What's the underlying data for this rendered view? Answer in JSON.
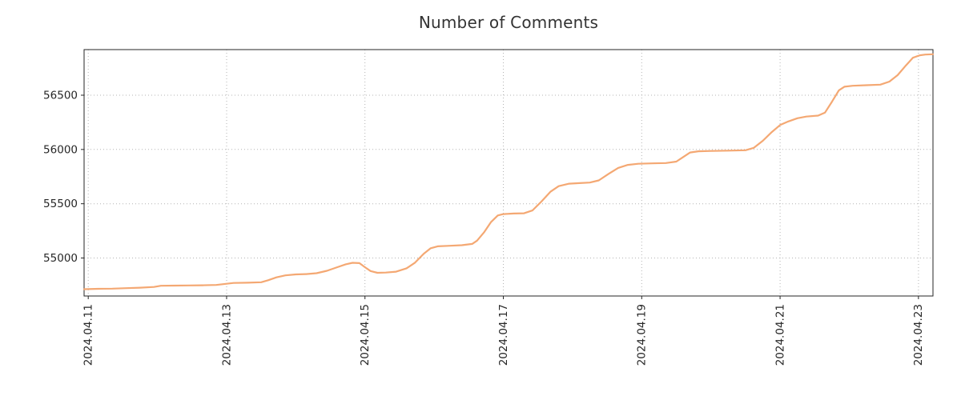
{
  "chart_data": {
    "type": "line",
    "title": "Number of Comments",
    "xlabel": "",
    "ylabel": "",
    "x_unit": "days since 2024.04.11",
    "grid": true,
    "legend": "none",
    "line_color": "#f4a873",
    "grid_color": "#b3b3b3",
    "axis_color": "#262626",
    "xlim": [
      -0.06,
      12.21
    ],
    "ylim": [
      54650,
      56920
    ],
    "y_ticks": [
      55000,
      55500,
      56000,
      56500
    ],
    "x_ticks": [
      {
        "pos": 0,
        "label": "2024.04.11"
      },
      {
        "pos": 2,
        "label": "2024.04.13"
      },
      {
        "pos": 4,
        "label": "2024.04.15"
      },
      {
        "pos": 6,
        "label": "2024.04.17"
      },
      {
        "pos": 8,
        "label": "2024.04.19"
      },
      {
        "pos": 10,
        "label": "2024.04.21"
      },
      {
        "pos": 12,
        "label": "2024.04.23"
      }
    ],
    "points": [
      [
        -0.06,
        54713
      ],
      [
        0.15,
        54716
      ],
      [
        0.35,
        54718
      ],
      [
        0.55,
        54722
      ],
      [
        0.75,
        54727
      ],
      [
        0.95,
        54733
      ],
      [
        1.05,
        54744
      ],
      [
        1.25,
        54746
      ],
      [
        1.45,
        54747
      ],
      [
        1.65,
        54749
      ],
      [
        1.85,
        54752
      ],
      [
        2.0,
        54763
      ],
      [
        2.1,
        54770
      ],
      [
        2.3,
        54772
      ],
      [
        2.5,
        54777
      ],
      [
        2.6,
        54795
      ],
      [
        2.72,
        54822
      ],
      [
        2.85,
        54840
      ],
      [
        3.0,
        54849
      ],
      [
        3.15,
        54852
      ],
      [
        3.3,
        54860
      ],
      [
        3.45,
        54882
      ],
      [
        3.6,
        54915
      ],
      [
        3.72,
        54942
      ],
      [
        3.82,
        54956
      ],
      [
        3.92,
        54953
      ],
      [
        4.0,
        54915
      ],
      [
        4.08,
        54880
      ],
      [
        4.18,
        54864
      ],
      [
        4.3,
        54866
      ],
      [
        4.45,
        54874
      ],
      [
        4.6,
        54905
      ],
      [
        4.72,
        54955
      ],
      [
        4.85,
        55040
      ],
      [
        4.95,
        55090
      ],
      [
        5.05,
        55108
      ],
      [
        5.2,
        55112
      ],
      [
        5.4,
        55118
      ],
      [
        5.55,
        55130
      ],
      [
        5.62,
        55160
      ],
      [
        5.72,
        55235
      ],
      [
        5.82,
        55330
      ],
      [
        5.92,
        55392
      ],
      [
        6.0,
        55405
      ],
      [
        6.15,
        55410
      ],
      [
        6.3,
        55412
      ],
      [
        6.42,
        55438
      ],
      [
        6.55,
        55520
      ],
      [
        6.68,
        55610
      ],
      [
        6.8,
        55662
      ],
      [
        6.95,
        55685
      ],
      [
        7.1,
        55690
      ],
      [
        7.25,
        55695
      ],
      [
        7.38,
        55715
      ],
      [
        7.52,
        55775
      ],
      [
        7.66,
        55830
      ],
      [
        7.8,
        55858
      ],
      [
        7.95,
        55868
      ],
      [
        8.15,
        55872
      ],
      [
        8.35,
        55875
      ],
      [
        8.5,
        55888
      ],
      [
        8.6,
        55930
      ],
      [
        8.7,
        55972
      ],
      [
        8.82,
        55983
      ],
      [
        9.0,
        55986
      ],
      [
        9.25,
        55989
      ],
      [
        9.5,
        55993
      ],
      [
        9.62,
        56015
      ],
      [
        9.75,
        56080
      ],
      [
        9.88,
        56160
      ],
      [
        10.0,
        56225
      ],
      [
        10.12,
        56258
      ],
      [
        10.25,
        56288
      ],
      [
        10.38,
        56303
      ],
      [
        10.55,
        56312
      ],
      [
        10.65,
        56340
      ],
      [
        10.75,
        56440
      ],
      [
        10.85,
        56545
      ],
      [
        10.93,
        56578
      ],
      [
        11.05,
        56587
      ],
      [
        11.25,
        56592
      ],
      [
        11.45,
        56597
      ],
      [
        11.58,
        56625
      ],
      [
        11.7,
        56685
      ],
      [
        11.82,
        56775
      ],
      [
        11.92,
        56845
      ],
      [
        12.02,
        56868
      ],
      [
        12.1,
        56874
      ],
      [
        12.21,
        56877
      ]
    ]
  }
}
